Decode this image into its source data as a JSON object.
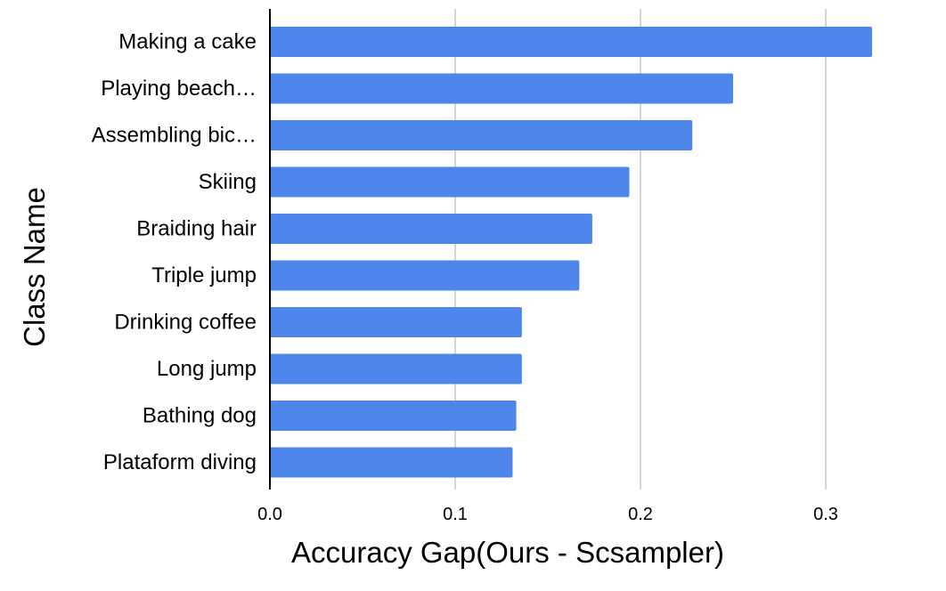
{
  "chart_data": {
    "type": "bar",
    "orientation": "horizontal",
    "categories": [
      "Making a cake",
      "Playing beach…",
      "Assembling bic…",
      "Skiing",
      "Braiding hair",
      "Triple jump",
      "Drinking coffee",
      "Long jump",
      "Bathing dog",
      "Plataform diving"
    ],
    "values": [
      0.325,
      0.25,
      0.228,
      0.194,
      0.174,
      0.167,
      0.136,
      0.136,
      0.133,
      0.131
    ],
    "xlabel": "Accuracy Gap(Ours - Scsampler)",
    "ylabel": "Class Name",
    "xlim": [
      0,
      0.35
    ],
    "xticks": [
      "0.0",
      "0.1",
      "0.2",
      "0.3"
    ],
    "grid": true,
    "bar_color": "#4f86ec",
    "grid_color": "#c8c8c8",
    "axis_color": "#000000"
  }
}
